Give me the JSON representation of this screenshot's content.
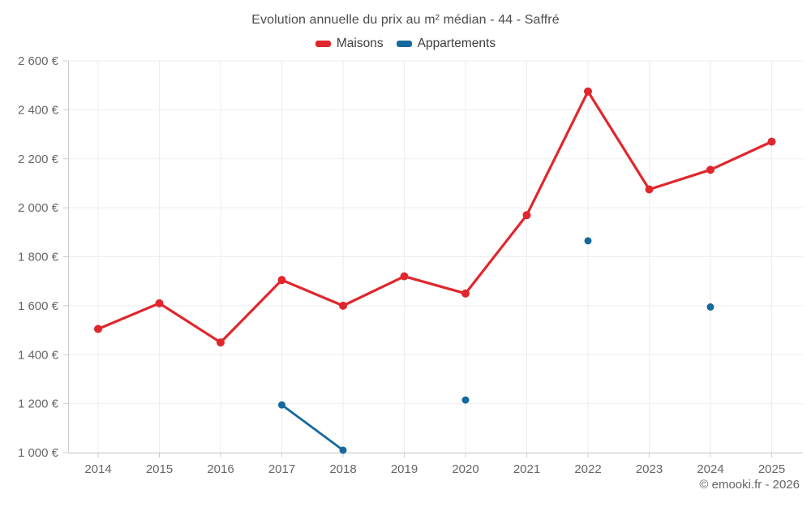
{
  "header": {
    "title": "Evolution annuelle du prix au m² médian - 44 - Saffré"
  },
  "footer": {
    "copyright": "© emooki.fr - 2026"
  },
  "chart_data": {
    "type": "line",
    "title": "Evolution annuelle du prix au m² médian - 44 - Saffré",
    "categories": [
      "2014",
      "2015",
      "2016",
      "2017",
      "2018",
      "2019",
      "2020",
      "2021",
      "2022",
      "2023",
      "2024",
      "2025"
    ],
    "series": [
      {
        "name": "Maisons",
        "color": "#e0272e",
        "values": [
          1505,
          1610,
          1450,
          1705,
          1600,
          1720,
          1650,
          1970,
          2475,
          2075,
          2155,
          2270
        ]
      },
      {
        "name": "Appartements",
        "color": "#16699e",
        "values": [
          null,
          null,
          null,
          1195,
          1010,
          null,
          1215,
          null,
          1865,
          null,
          1595,
          null
        ]
      }
    ],
    "ylim": [
      1000,
      2600
    ],
    "ytick_step": 200,
    "ytick_labels": [
      "1 000 €",
      "1 200 €",
      "1 400 €",
      "1 600 €",
      "1 800 €",
      "2 000 €",
      "2 200 €",
      "2 400 €",
      "2 600 €"
    ],
    "xlabel": "",
    "ylabel": "",
    "grid": true,
    "legend_position": "top",
    "colors": {
      "gridline": "#ededed",
      "axis": "#cccccc",
      "tick_text": "#666666",
      "title_text": "#4d4d4d"
    }
  }
}
